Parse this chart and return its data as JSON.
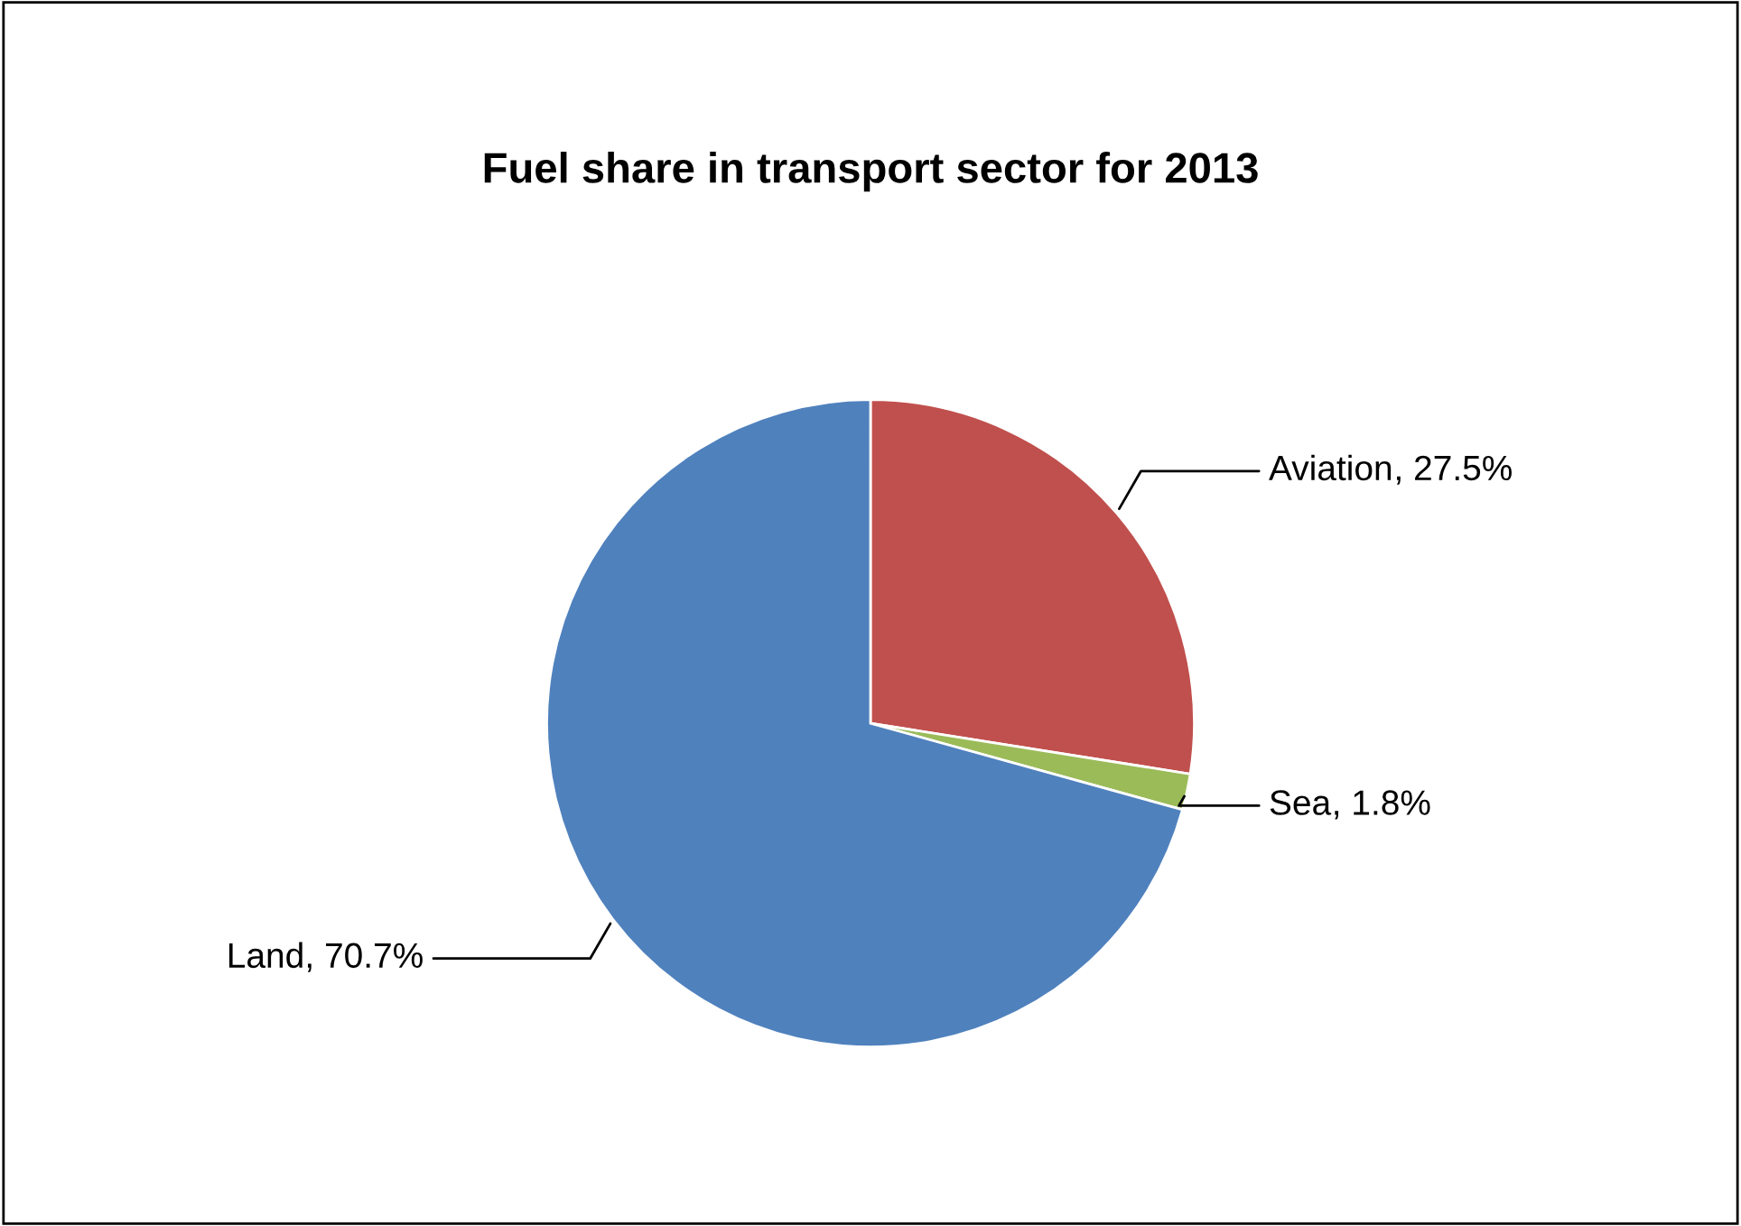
{
  "chart_data": {
    "type": "pie",
    "title": "Fuel share in transport sector for 2013",
    "categories": [
      "Aviation",
      "Sea",
      "Land"
    ],
    "values": [
      27.5,
      1.8,
      70.7
    ],
    "colors": [
      "#c0504d",
      "#9bbb59",
      "#4f81bd"
    ],
    "value_labels": [
      ", 27.5%",
      ", 1.8%",
      ", 70.7%"
    ],
    "legend": false
  }
}
